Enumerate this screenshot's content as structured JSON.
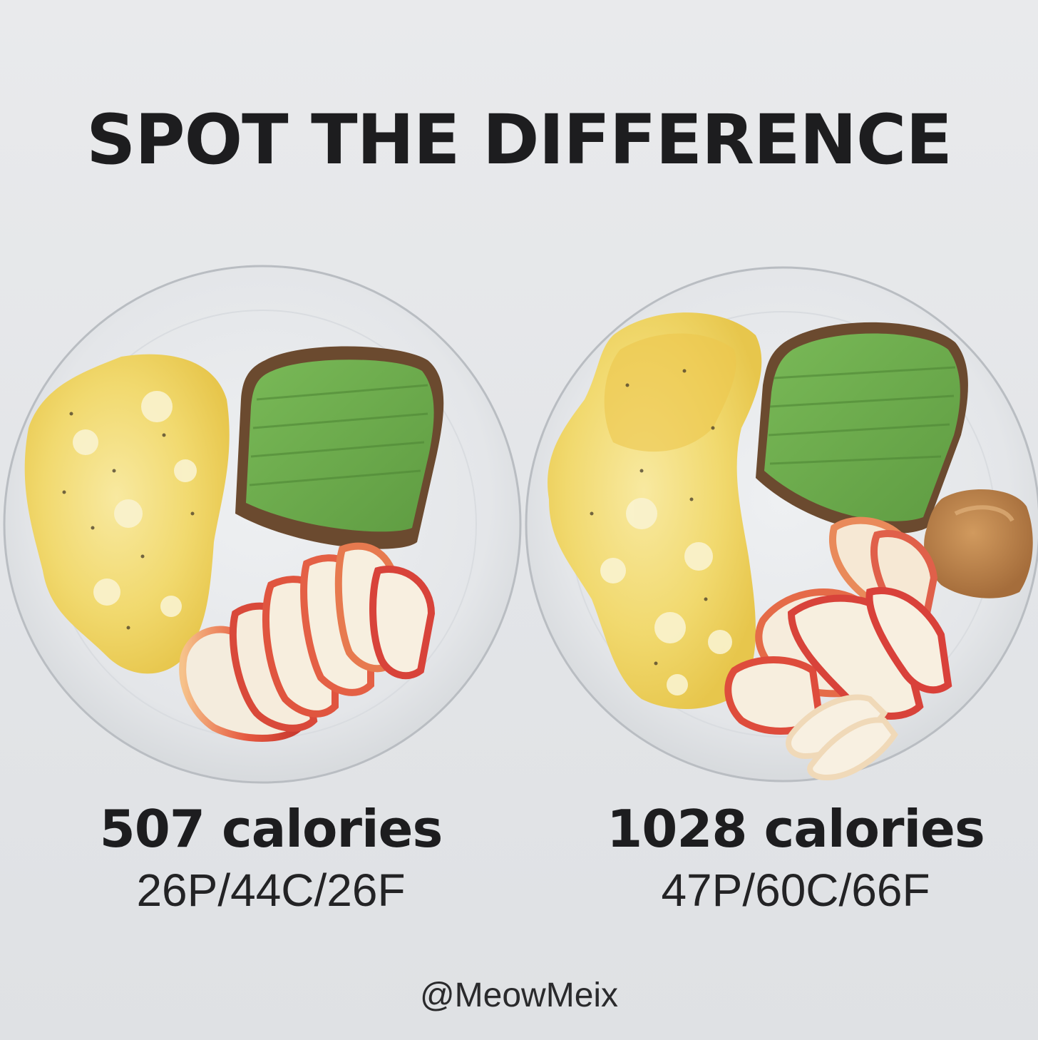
{
  "title": "SPOT THE DIFFERENCE",
  "meals": [
    {
      "calories": "507 calories",
      "macros": "26P/44C/26F",
      "items": [
        "scrambled-eggs",
        "avocado-toast",
        "apple-slices"
      ]
    },
    {
      "calories": "1028 calories",
      "macros": "47P/60C/66F",
      "items": [
        "scrambled-eggs",
        "avocado-toast",
        "apple-slices",
        "peanut-butter"
      ]
    }
  ],
  "handle": "@MeowMeix",
  "colors": {
    "background": "#e6e7ea",
    "text": "#1d1d1f",
    "egg": "#f2dc7a",
    "avocado": "#6fae4e",
    "toast": "#6b4a2f",
    "apple_skin": "#e04a3c",
    "apple_flesh": "#f7eedd",
    "peanut_butter": "#b9804a"
  }
}
